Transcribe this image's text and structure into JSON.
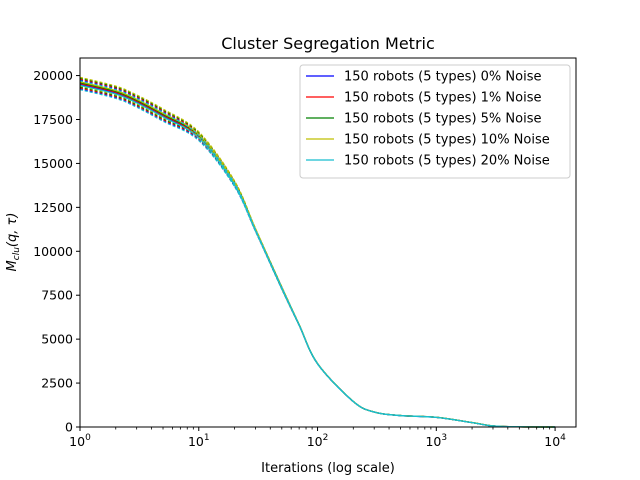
{
  "chart_data": {
    "type": "line",
    "title": "Cluster Segregation Metric",
    "xlabel": "Iterations (log scale)",
    "ylabel": "M_clu(q, τ)",
    "ylabel_main": "M",
    "ylabel_sub": "clu",
    "ylabel_args": "(q, τ)",
    "x_scale": "log",
    "xlim": [
      1,
      15000
    ],
    "ylim": [
      0,
      21000
    ],
    "x_ticks": [
      1,
      10,
      100,
      1000,
      10000
    ],
    "x_tick_labels": [
      {
        "base": "10",
        "exp": "0"
      },
      {
        "base": "10",
        "exp": "1"
      },
      {
        "base": "10",
        "exp": "2"
      },
      {
        "base": "10",
        "exp": "3"
      },
      {
        "base": "10",
        "exp": "4"
      }
    ],
    "y_ticks": [
      0,
      2500,
      5000,
      7500,
      10000,
      12500,
      15000,
      17500,
      20000
    ],
    "y_tick_labels": [
      "0",
      "2500",
      "5000",
      "7500",
      "10000",
      "12500",
      "15000",
      "17500",
      "20000"
    ],
    "grid": false,
    "legend_position": "top-right",
    "x": [
      1,
      2,
      3,
      5,
      10,
      20,
      30,
      50,
      70,
      100,
      200,
      300,
      500,
      1000,
      2000,
      3000,
      5000,
      10000
    ],
    "series": [
      {
        "name": "150 robots (5 types) 0% Noise",
        "color": "#0000ff",
        "values": [
          19500,
          19000,
          18500,
          17700,
          16500,
          13800,
          11200,
          7900,
          5800,
          3600,
          1450,
          850,
          650,
          550,
          250,
          60,
          10,
          0
        ],
        "band_low": [
          19250,
          18750,
          18250,
          17450,
          16350,
          13700,
          11150,
          7850,
          5780,
          3590,
          1445,
          848,
          648,
          548,
          248,
          58,
          9,
          0
        ],
        "band_high": [
          19750,
          19250,
          18750,
          17950,
          16650,
          13900,
          11250,
          7950,
          5820,
          3610,
          1455,
          852,
          652,
          552,
          252,
          62,
          11,
          0
        ]
      },
      {
        "name": "150 robots (5 types) 1% Noise",
        "color": "#ff0000",
        "values": [
          19550,
          19050,
          18550,
          17750,
          16550,
          13850,
          11220,
          7910,
          5810,
          3605,
          1452,
          851,
          651,
          551,
          251,
          61,
          10,
          0
        ],
        "band_low": [
          19300,
          18800,
          18300,
          17500,
          16400,
          13750,
          11170,
          7860,
          5790,
          3595,
          1447,
          849,
          649,
          549,
          249,
          59,
          9,
          0
        ],
        "band_high": [
          19800,
          19300,
          18800,
          18000,
          16700,
          13950,
          11270,
          7960,
          5830,
          3615,
          1457,
          853,
          653,
          553,
          253,
          63,
          11,
          0
        ]
      },
      {
        "name": "150 robots (5 types) 5% Noise",
        "color": "#008000",
        "values": [
          19600,
          19100,
          18600,
          17800,
          16600,
          13880,
          11240,
          7920,
          5815,
          3608,
          1453,
          852,
          652,
          552,
          252,
          62,
          10,
          0
        ],
        "band_low": [
          19350,
          18850,
          18350,
          17550,
          16450,
          13780,
          11190,
          7870,
          5795,
          3598,
          1448,
          850,
          650,
          550,
          250,
          60,
          9,
          0
        ],
        "band_high": [
          19850,
          19350,
          18850,
          18050,
          16750,
          13980,
          11290,
          7970,
          5835,
          3618,
          1458,
          854,
          654,
          554,
          254,
          64,
          11,
          0
        ]
      },
      {
        "name": "150 robots (5 types) 10% Noise",
        "color": "#bfbf00",
        "values": [
          19650,
          19150,
          18650,
          17850,
          16650,
          13910,
          11260,
          7930,
          5820,
          3610,
          1454,
          853,
          653,
          553,
          253,
          63,
          10,
          0
        ],
        "band_low": [
          19400,
          18900,
          18400,
          17600,
          16500,
          13810,
          11210,
          7880,
          5800,
          3600,
          1449,
          851,
          651,
          551,
          251,
          61,
          9,
          0
        ],
        "band_high": [
          19900,
          19400,
          18900,
          18100,
          16800,
          14010,
          11310,
          7980,
          5840,
          3620,
          1459,
          855,
          655,
          555,
          255,
          65,
          11,
          0
        ]
      },
      {
        "name": "150 robots (5 types) 20% Noise",
        "color": "#17becf",
        "values": [
          19450,
          18950,
          18450,
          17650,
          16450,
          13780,
          11190,
          7895,
          5805,
          3602,
          1451,
          850,
          650,
          550,
          250,
          60,
          10,
          0
        ],
        "band_low": [
          19200,
          18700,
          18200,
          17400,
          16300,
          13680,
          11140,
          7845,
          5785,
          3592,
          1446,
          848,
          648,
          548,
          248,
          58,
          9,
          0
        ],
        "band_high": [
          19700,
          19200,
          18700,
          17900,
          16600,
          13880,
          11240,
          7945,
          5825,
          3612,
          1456,
          852,
          652,
          552,
          252,
          62,
          11,
          0
        ]
      }
    ]
  }
}
